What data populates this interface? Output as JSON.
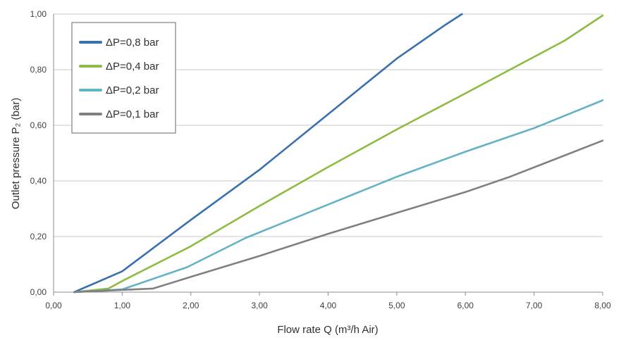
{
  "chart_data": {
    "type": "line",
    "xlabel": "Flow rate Q (m³/h Air)",
    "ylabel": "Outlet pressure P₂ (bar)",
    "xlim": [
      0,
      8
    ],
    "ylim": [
      0,
      1
    ],
    "x_ticks": [
      "0,00",
      "1,00",
      "2,00",
      "3,00",
      "4,00",
      "5,00",
      "6,00",
      "7,00",
      "8,00"
    ],
    "y_ticks": [
      "0,00",
      "0,20",
      "0,40",
      "0,60",
      "0,80",
      "1,00"
    ],
    "grid": "horizontal",
    "legend_position": "top-left",
    "series": [
      {
        "name": "ΔP=0,8 bar",
        "color": "#3a6fb0",
        "points": [
          [
            0.3,
            0.0
          ],
          [
            1.0,
            0.075
          ],
          [
            2.0,
            0.26
          ],
          [
            3.0,
            0.44
          ],
          [
            4.0,
            0.64
          ],
          [
            5.0,
            0.84
          ],
          [
            5.7,
            0.96
          ],
          [
            5.95,
            1.0
          ]
        ]
      },
      {
        "name": "ΔP=0,4 bar",
        "color": "#8fba44",
        "points": [
          [
            0.3,
            0.0
          ],
          [
            0.8,
            0.013
          ],
          [
            1.0,
            0.04
          ],
          [
            2.0,
            0.165
          ],
          [
            3.0,
            0.31
          ],
          [
            4.0,
            0.45
          ],
          [
            5.0,
            0.585
          ],
          [
            6.0,
            0.715
          ],
          [
            7.45,
            0.905
          ],
          [
            8.0,
            0.995
          ]
        ]
      },
      {
        "name": "ΔP=0,2 bar",
        "color": "#63b3c4",
        "points": [
          [
            0.3,
            0.0
          ],
          [
            1.0,
            0.01
          ],
          [
            1.95,
            0.09
          ],
          [
            2.8,
            0.195
          ],
          [
            4.0,
            0.315
          ],
          [
            5.0,
            0.415
          ],
          [
            6.0,
            0.505
          ],
          [
            7.0,
            0.59
          ],
          [
            8.0,
            0.69
          ]
        ]
      },
      {
        "name": "ΔP=0,1 bar",
        "color": "#808080",
        "points": [
          [
            0.3,
            0.0
          ],
          [
            1.0,
            0.008
          ],
          [
            1.45,
            0.013
          ],
          [
            2.0,
            0.055
          ],
          [
            3.0,
            0.13
          ],
          [
            4.0,
            0.21
          ],
          [
            5.0,
            0.285
          ],
          [
            6.0,
            0.36
          ],
          [
            6.65,
            0.415
          ],
          [
            8.0,
            0.545
          ]
        ]
      }
    ]
  }
}
